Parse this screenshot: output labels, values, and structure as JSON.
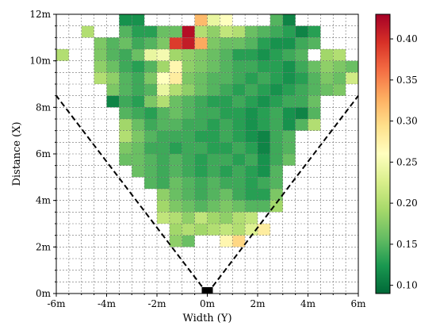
{
  "chart_data": {
    "type": "heatmap",
    "title": "",
    "xlabel": "Width (Y)",
    "ylabel": "Distance (X)",
    "xlim": [
      -6,
      6
    ],
    "ylim": [
      0,
      12
    ],
    "cell_size_m": 0.5,
    "x_ticks": [
      {
        "value": -6,
        "label": "-6m"
      },
      {
        "value": -4,
        "label": "-4m"
      },
      {
        "value": -2,
        "label": "-2m"
      },
      {
        "value": 0,
        "label": "0m"
      },
      {
        "value": 2,
        "label": "2m"
      },
      {
        "value": 4,
        "label": "4m"
      },
      {
        "value": 6,
        "label": "6m"
      }
    ],
    "y_ticks": [
      {
        "value": 0,
        "label": "0m"
      },
      {
        "value": 2,
        "label": "2m"
      },
      {
        "value": 4,
        "label": "4m"
      },
      {
        "value": 6,
        "label": "6m"
      },
      {
        "value": 8,
        "label": "8m"
      },
      {
        "value": 10,
        "label": "10m"
      },
      {
        "value": 12,
        "label": "12m"
      }
    ],
    "grid": true,
    "colorbar": {
      "colormap": "RdYlGn_r",
      "min": 0.09,
      "max": 0.43,
      "ticks": [
        {
          "value": 0.1,
          "label": "0.10"
        },
        {
          "value": 0.15,
          "label": "0.15"
        },
        {
          "value": 0.2,
          "label": "0.20"
        },
        {
          "value": 0.25,
          "label": "0.25"
        },
        {
          "value": 0.3,
          "label": "0.30"
        },
        {
          "value": 0.35,
          "label": "0.35"
        },
        {
          "value": 0.4,
          "label": "0.40"
        }
      ]
    },
    "fov_lines": [
      {
        "from": [
          0,
          0
        ],
        "to": [
          -6,
          8.5
        ],
        "style": "dashed"
      },
      {
        "from": [
          0,
          0
        ],
        "to": [
          6,
          8.5
        ],
        "style": "dashed"
      }
    ],
    "sensor_marker": {
      "x": 0,
      "y": 0,
      "color": "#000000"
    },
    "rows": [
      {
        "y": 11.5,
        "x0": -3.5,
        "values": [
          0.12,
          0.12,
          null,
          null,
          null,
          null,
          0.32,
          0.24,
          0.26,
          null,
          null,
          null,
          0.15,
          0.11
        ]
      },
      {
        "y": 11.0,
        "x0": -5.0,
        "values": [
          0.2,
          null,
          null,
          0.15,
          0.13,
          0.13,
          0.16,
          0.16,
          0.42,
          0.2,
          0.18,
          0.21,
          0.2,
          0.16,
          0.15,
          0.14,
          0.13,
          0.11,
          0.13
        ]
      },
      {
        "y": 10.5,
        "x0": -4.5,
        "values": [
          0.17,
          0.15,
          0.16,
          0.14,
          0.15,
          0.17,
          0.39,
          0.41,
          0.33,
          0.17,
          0.16,
          0.16,
          0.15,
          0.13,
          0.12,
          0.12,
          0.14,
          0.15
        ]
      },
      {
        "y": 10.0,
        "x0": -6.0,
        "values": [
          0.2,
          null,
          null,
          0.17,
          0.15,
          0.14,
          0.16,
          0.24,
          0.25,
          0.19,
          0.18,
          0.17,
          0.16,
          0.15,
          0.13,
          0.13,
          0.12,
          0.13,
          0.14,
          0.15,
          null,
          0.19,
          0.2
        ]
      },
      {
        "y": 9.5,
        "x0": -4.5,
        "values": [
          0.18,
          0.16,
          0.14,
          0.13,
          0.15,
          0.19,
          0.27,
          0.18,
          0.17,
          0.16,
          0.15,
          0.14,
          0.14,
          0.13,
          0.13,
          0.12,
          0.14,
          0.16,
          0.18,
          0.17,
          0.16
        ]
      },
      {
        "y": 9.0,
        "x0": -4.5,
        "values": [
          0.2,
          0.18,
          0.15,
          0.14,
          0.17,
          0.26,
          0.28,
          0.17,
          0.16,
          0.15,
          0.15,
          0.14,
          0.13,
          0.14,
          0.13,
          0.12,
          0.13,
          0.15,
          0.17,
          0.16,
          0.22
        ]
      },
      {
        "y": 8.5,
        "x0": -4.0,
        "values": [
          0.17,
          0.15,
          0.14,
          0.15,
          0.24,
          0.2,
          0.18,
          0.16,
          0.15,
          0.14,
          0.13,
          0.14,
          0.13,
          0.12,
          0.13,
          0.14,
          0.15,
          0.16,
          0.17
        ]
      },
      {
        "y": 8.0,
        "x0": -4.0,
        "values": [
          0.11,
          0.14,
          0.13,
          0.17,
          0.2,
          0.16,
          0.15,
          0.14,
          0.13,
          0.13,
          0.14,
          0.13,
          0.12,
          0.13,
          0.14,
          0.14,
          0.16
        ]
      },
      {
        "y": 7.5,
        "x0": -3.5,
        "values": [
          0.15,
          0.14,
          0.13,
          0.15,
          0.16,
          0.15,
          0.14,
          0.14,
          0.13,
          0.13,
          0.12,
          0.13,
          0.14,
          0.12,
          0.11,
          0.15
        ]
      },
      {
        "y": 7.0,
        "x0": -3.5,
        "values": [
          0.19,
          0.16,
          0.14,
          0.15,
          0.15,
          0.14,
          0.14,
          0.13,
          0.14,
          0.13,
          0.12,
          0.13,
          0.14,
          0.12,
          0.15,
          0.2
        ]
      },
      {
        "y": 6.5,
        "x0": -3.5,
        "values": [
          0.2,
          0.17,
          0.15,
          0.14,
          0.14,
          0.14,
          0.13,
          0.13,
          0.14,
          0.13,
          0.12,
          0.11,
          0.14,
          0.15
        ]
      },
      {
        "y": 6.0,
        "x0": -3.5,
        "values": [
          0.17,
          0.16,
          0.14,
          0.14,
          0.13,
          0.14,
          0.14,
          0.13,
          0.13,
          0.14,
          0.13,
          0.11,
          0.14,
          0.15
        ]
      },
      {
        "y": 5.5,
        "x0": -3.5,
        "values": [
          0.16,
          0.16,
          0.15,
          0.14,
          0.15,
          0.14,
          0.13,
          0.14,
          0.14,
          0.13,
          0.14,
          0.12,
          0.14,
          0.16
        ]
      },
      {
        "y": 5.0,
        "x0": -3.0,
        "values": [
          0.16,
          0.15,
          0.14,
          0.15,
          0.14,
          0.13,
          0.14,
          0.13,
          0.14,
          0.13,
          0.12,
          0.15
        ]
      },
      {
        "y": 4.5,
        "x0": -2.5,
        "values": [
          0.15,
          0.14,
          0.16,
          0.15,
          0.14,
          0.15,
          0.14,
          0.14,
          0.13,
          0.14,
          0.15
        ]
      },
      {
        "y": 4.0,
        "x0": -2.0,
        "values": [
          0.18,
          0.16,
          0.15,
          0.14,
          0.15,
          0.16,
          0.14,
          0.13,
          0.13,
          0.17
        ]
      },
      {
        "y": 3.5,
        "x0": -2.0,
        "values": [
          0.19,
          0.17,
          0.16,
          0.15,
          0.16,
          0.17,
          0.16,
          0.15,
          0.15,
          0.19
        ]
      },
      {
        "y": 3.0,
        "x0": -2.0,
        "values": [
          0.21,
          0.2,
          0.18,
          0.21,
          0.19,
          0.18,
          0.2,
          0.21
        ]
      },
      {
        "y": 2.5,
        "x0": -1.5,
        "values": [
          0.19,
          0.2,
          0.19,
          0.2,
          0.21,
          0.2,
          0.23,
          0.28
        ]
      },
      {
        "y": 2.0,
        "x0": -1.5,
        "values": [
          0.18,
          0.16,
          null,
          null,
          0.27,
          0.3
        ]
      }
    ]
  }
}
